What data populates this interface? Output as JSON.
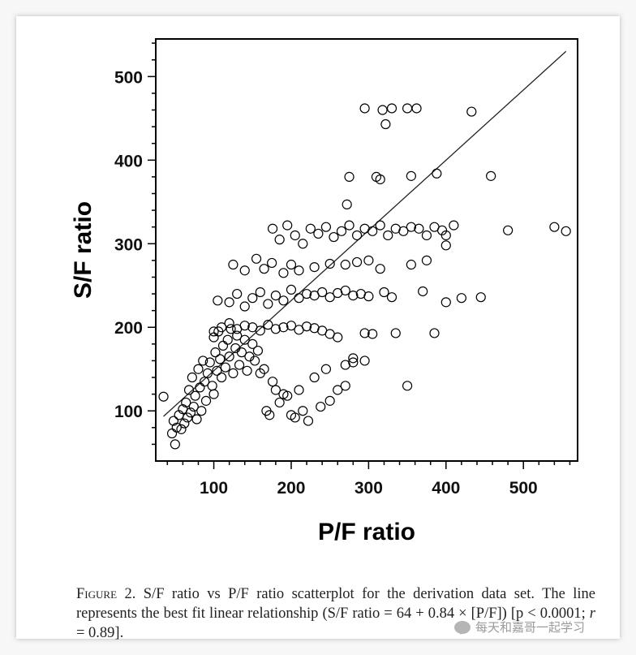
{
  "chart_data": {
    "type": "scatter",
    "xlabel": "P/F ratio",
    "ylabel": "S/F ratio",
    "xlim": [
      25,
      570
    ],
    "ylim": [
      40,
      545
    ],
    "xticks": [
      100,
      200,
      300,
      400,
      500
    ],
    "yticks": [
      100,
      200,
      300,
      400,
      500
    ],
    "grid": false,
    "fit_line": {
      "intercept": 64,
      "slope": 0.84,
      "x_range": [
        35,
        555
      ]
    },
    "points": [
      [
        35,
        117
      ],
      [
        46,
        73
      ],
      [
        48,
        88
      ],
      [
        50,
        60
      ],
      [
        52,
        80
      ],
      [
        55,
        95
      ],
      [
        58,
        78
      ],
      [
        60,
        102
      ],
      [
        62,
        85
      ],
      [
        64,
        110
      ],
      [
        66,
        92
      ],
      [
        68,
        125
      ],
      [
        70,
        98
      ],
      [
        72,
        140
      ],
      [
        74,
        105
      ],
      [
        76,
        118
      ],
      [
        78,
        90
      ],
      [
        80,
        150
      ],
      [
        82,
        128
      ],
      [
        84,
        100
      ],
      [
        86,
        160
      ],
      [
        88,
        135
      ],
      [
        90,
        112
      ],
      [
        92,
        145
      ],
      [
        95,
        158
      ],
      [
        98,
        130
      ],
      [
        100,
        120
      ],
      [
        100,
        188
      ],
      [
        102,
        170
      ],
      [
        104,
        148
      ],
      [
        105,
        232
      ],
      [
        106,
        195
      ],
      [
        108,
        162
      ],
      [
        110,
        140
      ],
      [
        112,
        178
      ],
      [
        115,
        152
      ],
      [
        118,
        185
      ],
      [
        120,
        165
      ],
      [
        122,
        198
      ],
      [
        125,
        145
      ],
      [
        128,
        175
      ],
      [
        130,
        190
      ],
      [
        133,
        155
      ],
      [
        136,
        170
      ],
      [
        140,
        185
      ],
      [
        143,
        148
      ],
      [
        146,
        165
      ],
      [
        150,
        180
      ],
      [
        153,
        160
      ],
      [
        157,
        172
      ],
      [
        160,
        145
      ],
      [
        165,
        150
      ],
      [
        168,
        100
      ],
      [
        172,
        95
      ],
      [
        176,
        135
      ],
      [
        180,
        125
      ],
      [
        185,
        110
      ],
      [
        190,
        120
      ],
      [
        195,
        118
      ],
      [
        200,
        95
      ],
      [
        205,
        92
      ],
      [
        210,
        125
      ],
      [
        215,
        100
      ],
      [
        222,
        88
      ],
      [
        230,
        140
      ],
      [
        238,
        105
      ],
      [
        245,
        150
      ],
      [
        250,
        112
      ],
      [
        260,
        125
      ],
      [
        270,
        130
      ],
      [
        120,
        230
      ],
      [
        130,
        240
      ],
      [
        140,
        225
      ],
      [
        150,
        235
      ],
      [
        160,
        242
      ],
      [
        170,
        228
      ],
      [
        180,
        238
      ],
      [
        190,
        232
      ],
      [
        200,
        245
      ],
      [
        210,
        235
      ],
      [
        220,
        240
      ],
      [
        230,
        238
      ],
      [
        240,
        242
      ],
      [
        250,
        236
      ],
      [
        260,
        241
      ],
      [
        270,
        244
      ],
      [
        280,
        238
      ],
      [
        290,
        240
      ],
      [
        300,
        237
      ],
      [
        320,
        242
      ],
      [
        330,
        236
      ],
      [
        100,
        195
      ],
      [
        110,
        200
      ],
      [
        120,
        205
      ],
      [
        130,
        198
      ],
      [
        140,
        202
      ],
      [
        150,
        200
      ],
      [
        160,
        196
      ],
      [
        170,
        203
      ],
      [
        180,
        198
      ],
      [
        190,
        200
      ],
      [
        200,
        202
      ],
      [
        210,
        197
      ],
      [
        220,
        201
      ],
      [
        230,
        199
      ],
      [
        240,
        196
      ],
      [
        250,
        192
      ],
      [
        260,
        188
      ],
      [
        125,
        275
      ],
      [
        140,
        268
      ],
      [
        155,
        282
      ],
      [
        165,
        270
      ],
      [
        175,
        277
      ],
      [
        190,
        265
      ],
      [
        200,
        275
      ],
      [
        210,
        268
      ],
      [
        230,
        272
      ],
      [
        250,
        276
      ],
      [
        270,
        275
      ],
      [
        285,
        278
      ],
      [
        300,
        280
      ],
      [
        315,
        270
      ],
      [
        176,
        318
      ],
      [
        185,
        305
      ],
      [
        195,
        322
      ],
      [
        205,
        310
      ],
      [
        215,
        300
      ],
      [
        225,
        318
      ],
      [
        235,
        312
      ],
      [
        245,
        320
      ],
      [
        255,
        308
      ],
      [
        265,
        315
      ],
      [
        275,
        322
      ],
      [
        285,
        310
      ],
      [
        295,
        318
      ],
      [
        305,
        315
      ],
      [
        315,
        322
      ],
      [
        325,
        310
      ],
      [
        335,
        318
      ],
      [
        345,
        315
      ],
      [
        355,
        320
      ],
      [
        365,
        318
      ],
      [
        375,
        310
      ],
      [
        385,
        320
      ],
      [
        395,
        316
      ],
      [
        400,
        298
      ],
      [
        420,
        235
      ],
      [
        445,
        236
      ],
      [
        400,
        230
      ],
      [
        385,
        193
      ],
      [
        335,
        193
      ],
      [
        295,
        193
      ],
      [
        305,
        192
      ],
      [
        280,
        163
      ],
      [
        295,
        160
      ],
      [
        270,
        155
      ],
      [
        280,
        158
      ],
      [
        350,
        130
      ],
      [
        275,
        380
      ],
      [
        310,
        380
      ],
      [
        315,
        377
      ],
      [
        355,
        381
      ],
      [
        388,
        384
      ],
      [
        458,
        381
      ],
      [
        295,
        462
      ],
      [
        318,
        460
      ],
      [
        322,
        443
      ],
      [
        330,
        462
      ],
      [
        350,
        462
      ],
      [
        362,
        462
      ],
      [
        433,
        458
      ],
      [
        272,
        347
      ],
      [
        480,
        316
      ],
      [
        540,
        320
      ],
      [
        555,
        315
      ],
      [
        370,
        243
      ],
      [
        355,
        275
      ],
      [
        375,
        280
      ],
      [
        400,
        310
      ],
      [
        410,
        322
      ]
    ]
  },
  "caption": {
    "label": "Figure",
    "number": "2.",
    "before_r": "S/F ratio vs P/F ratio scatterplot for the derivation data set. The line represents the best fit linear relationship (S/F ratio = 64 + 0.84 × [P/F]) [p < 0.0001; ",
    "r_symbol": "r",
    "after_r": " = 0.89]."
  },
  "watermark": {
    "text": "每天和嘉哥一起学习"
  }
}
